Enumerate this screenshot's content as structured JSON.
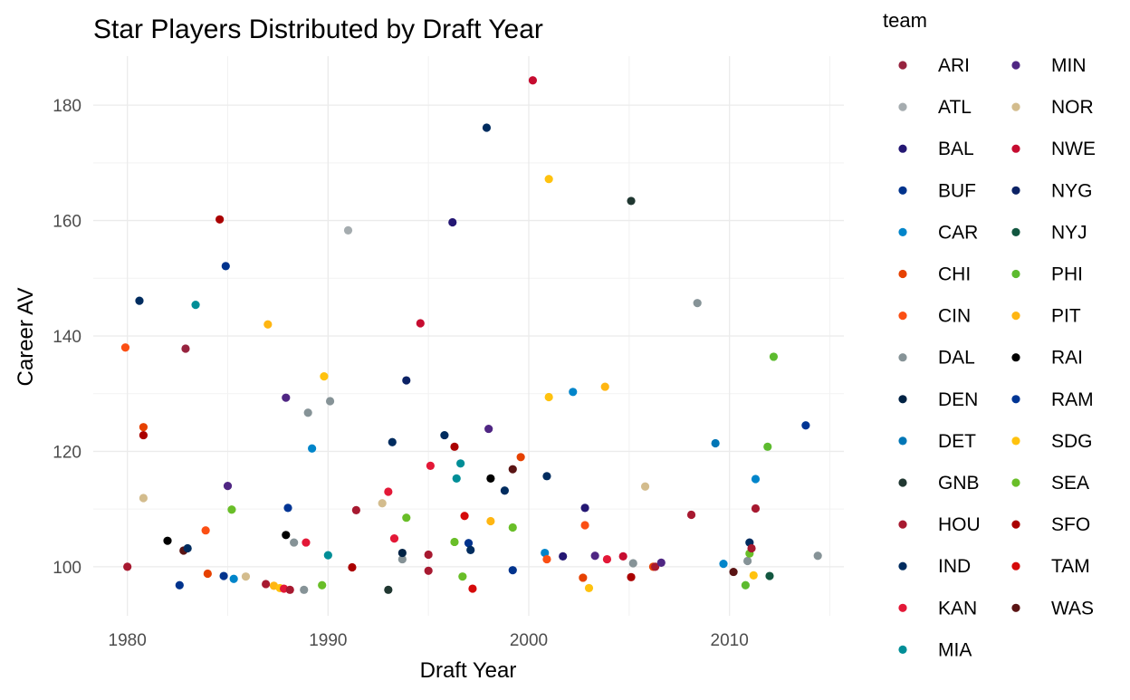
{
  "chart_data": {
    "type": "scatter",
    "title": "Star Players Distributed by Draft Year",
    "xlabel": "Draft Year",
    "ylabel": "Career AV",
    "xlim": [
      1978.3,
      2015.7
    ],
    "ylim": [
      91.5,
      188.5
    ],
    "x_ticks": [
      1980,
      1990,
      2000,
      2010
    ],
    "y_ticks": [
      100,
      120,
      140,
      160,
      180
    ],
    "grid": true,
    "legend_title": "team",
    "legend_position": "right",
    "teams": [
      {
        "name": "ARI",
        "color": "#97233F"
      },
      {
        "name": "ATL",
        "color": "#A5ACAF"
      },
      {
        "name": "BAL",
        "color": "#241773"
      },
      {
        "name": "BUF",
        "color": "#00338D"
      },
      {
        "name": "CAR",
        "color": "#0085CA"
      },
      {
        "name": "CHI",
        "color": "#E64100"
      },
      {
        "name": "CIN",
        "color": "#FB4F14"
      },
      {
        "name": "DAL",
        "color": "#869397"
      },
      {
        "name": "DEN",
        "color": "#002244"
      },
      {
        "name": "DET",
        "color": "#0076B6"
      },
      {
        "name": "GNB",
        "color": "#203731"
      },
      {
        "name": "HOU",
        "color": "#A71930"
      },
      {
        "name": "IND",
        "color": "#002C5F"
      },
      {
        "name": "KAN",
        "color": "#E31837"
      },
      {
        "name": "MIA",
        "color": "#008E97"
      },
      {
        "name": "MIN",
        "color": "#4F2683"
      },
      {
        "name": "NOR",
        "color": "#D3BC8D"
      },
      {
        "name": "NWE",
        "color": "#C60C30"
      },
      {
        "name": "NYG",
        "color": "#0B2265"
      },
      {
        "name": "NYJ",
        "color": "#125740"
      },
      {
        "name": "PHI",
        "color": "#5DBB2F"
      },
      {
        "name": "PIT",
        "color": "#FFB612"
      },
      {
        "name": "RAI",
        "color": "#000000"
      },
      {
        "name": "RAM",
        "color": "#003594"
      },
      {
        "name": "SDG",
        "color": "#FFC20E"
      },
      {
        "name": "SEA",
        "color": "#69BE28"
      },
      {
        "name": "SFO",
        "color": "#AA0000"
      },
      {
        "name": "TAM",
        "color": "#D50A0A"
      },
      {
        "name": "WAS",
        "color": "#5A1414"
      }
    ],
    "points": [
      {
        "x": 1979.9,
        "y": 138,
        "team": "CIN"
      },
      {
        "x": 1980.0,
        "y": 100,
        "team": "HOU"
      },
      {
        "x": 1980.6,
        "y": 146.1,
        "team": "IND"
      },
      {
        "x": 1980.8,
        "y": 124.2,
        "team": "CHI"
      },
      {
        "x": 1980.8,
        "y": 122.8,
        "team": "SFO"
      },
      {
        "x": 1980.8,
        "y": 111.9,
        "team": "NOR"
      },
      {
        "x": 1982.0,
        "y": 104.5,
        "team": "RAI"
      },
      {
        "x": 1982.6,
        "y": 96.8,
        "team": "BUF"
      },
      {
        "x": 1982.8,
        "y": 102.8,
        "team": "WAS"
      },
      {
        "x": 1982.9,
        "y": 137.8,
        "team": "ARI"
      },
      {
        "x": 1983.0,
        "y": 103.2,
        "team": "IND"
      },
      {
        "x": 1983.4,
        "y": 145.4,
        "team": "MIA"
      },
      {
        "x": 1983.9,
        "y": 106.3,
        "team": "CIN"
      },
      {
        "x": 1984.0,
        "y": 98.8,
        "team": "CHI"
      },
      {
        "x": 1984.6,
        "y": 160.2,
        "team": "SFO"
      },
      {
        "x": 1984.8,
        "y": 98.4,
        "team": "BUF"
      },
      {
        "x": 1984.9,
        "y": 152.1,
        "team": "BUF"
      },
      {
        "x": 1985.0,
        "y": 114,
        "team": "MIN"
      },
      {
        "x": 1985.2,
        "y": 109.9,
        "team": "SEA"
      },
      {
        "x": 1985.3,
        "y": 97.9,
        "team": "CAR"
      },
      {
        "x": 1985.9,
        "y": 98.3,
        "team": "NOR"
      },
      {
        "x": 1986.9,
        "y": 97,
        "team": "HOU"
      },
      {
        "x": 1987.0,
        "y": 142,
        "team": "PIT"
      },
      {
        "x": 1987.3,
        "y": 96.7,
        "team": "PIT"
      },
      {
        "x": 1987.6,
        "y": 96.3,
        "team": "SDG"
      },
      {
        "x": 1987.8,
        "y": 96.2,
        "team": "KAN"
      },
      {
        "x": 1987.9,
        "y": 129.3,
        "team": "MIN"
      },
      {
        "x": 1987.9,
        "y": 105.5,
        "team": "RAI"
      },
      {
        "x": 1988.0,
        "y": 110.2,
        "team": "RAM"
      },
      {
        "x": 1988.1,
        "y": 96,
        "team": "HOU"
      },
      {
        "x": 1988.3,
        "y": 104.2,
        "team": "DAL"
      },
      {
        "x": 1988.8,
        "y": 96,
        "team": "DAL"
      },
      {
        "x": 1988.9,
        "y": 104.2,
        "team": "KAN"
      },
      {
        "x": 1989.0,
        "y": 126.7,
        "team": "DAL"
      },
      {
        "x": 1989.2,
        "y": 120.5,
        "team": "CAR"
      },
      {
        "x": 1989.7,
        "y": 96.8,
        "team": "SEA"
      },
      {
        "x": 1989.8,
        "y": 133,
        "team": "SDG"
      },
      {
        "x": 1990.0,
        "y": 102,
        "team": "MIA"
      },
      {
        "x": 1990.1,
        "y": 128.7,
        "team": "DAL"
      },
      {
        "x": 1991.0,
        "y": 158.3,
        "team": "ATL"
      },
      {
        "x": 1991.2,
        "y": 99.9,
        "team": "SFO"
      },
      {
        "x": 1991.4,
        "y": 109.8,
        "team": "HOU"
      },
      {
        "x": 1992.7,
        "y": 111,
        "team": "NOR"
      },
      {
        "x": 1993.0,
        "y": 113,
        "team": "KAN"
      },
      {
        "x": 1993.0,
        "y": 96,
        "team": "GNB"
      },
      {
        "x": 1993.2,
        "y": 121.6,
        "team": "IND"
      },
      {
        "x": 1993.3,
        "y": 104.9,
        "team": "KAN"
      },
      {
        "x": 1993.7,
        "y": 101.3,
        "team": "DAL"
      },
      {
        "x": 1993.7,
        "y": 102.4,
        "team": "DEN"
      },
      {
        "x": 1993.9,
        "y": 108.5,
        "team": "SEA"
      },
      {
        "x": 1993.9,
        "y": 132.3,
        "team": "NYG"
      },
      {
        "x": 1994.6,
        "y": 142.2,
        "team": "NWE"
      },
      {
        "x": 1995.0,
        "y": 99.3,
        "team": "HOU"
      },
      {
        "x": 1995.0,
        "y": 102.1,
        "team": "HOU"
      },
      {
        "x": 1995.1,
        "y": 117.5,
        "team": "KAN"
      },
      {
        "x": 1995.8,
        "y": 122.8,
        "team": "IND"
      },
      {
        "x": 1996.2,
        "y": 159.7,
        "team": "BAL"
      },
      {
        "x": 1996.3,
        "y": 120.8,
        "team": "SFO"
      },
      {
        "x": 1996.3,
        "y": 104.3,
        "team": "SEA"
      },
      {
        "x": 1996.4,
        "y": 115.3,
        "team": "MIA"
      },
      {
        "x": 1996.6,
        "y": 117.9,
        "team": "MIA"
      },
      {
        "x": 1996.7,
        "y": 98.3,
        "team": "SEA"
      },
      {
        "x": 1996.8,
        "y": 108.8,
        "team": "TAM"
      },
      {
        "x": 1997.0,
        "y": 104.1,
        "team": "BUF"
      },
      {
        "x": 1997.1,
        "y": 102.9,
        "team": "IND"
      },
      {
        "x": 1997.2,
        "y": 96.2,
        "team": "TAM"
      },
      {
        "x": 1997.9,
        "y": 176.1,
        "team": "IND"
      },
      {
        "x": 1998.0,
        "y": 123.9,
        "team": "MIN"
      },
      {
        "x": 1998.1,
        "y": 115.3,
        "team": "RAI"
      },
      {
        "x": 1998.1,
        "y": 107.9,
        "team": "PIT"
      },
      {
        "x": 1998.8,
        "y": 113.2,
        "team": "IND"
      },
      {
        "x": 1999.2,
        "y": 116.9,
        "team": "WAS"
      },
      {
        "x": 1999.2,
        "y": 106.8,
        "team": "SEA"
      },
      {
        "x": 1999.2,
        "y": 99.4,
        "team": "BUF"
      },
      {
        "x": 1999.6,
        "y": 119,
        "team": "CHI"
      },
      {
        "x": 2000.2,
        "y": 184.3,
        "team": "NWE"
      },
      {
        "x": 2000.8,
        "y": 102.4,
        "team": "CAR"
      },
      {
        "x": 2000.9,
        "y": 101.3,
        "team": "CIN"
      },
      {
        "x": 2000.9,
        "y": 115.7,
        "team": "IND"
      },
      {
        "x": 2001.0,
        "y": 129.4,
        "team": "SDG"
      },
      {
        "x": 2001.0,
        "y": 167.2,
        "team": "SDG"
      },
      {
        "x": 2001.7,
        "y": 101.8,
        "team": "BAL"
      },
      {
        "x": 2002.2,
        "y": 130.3,
        "team": "CAR"
      },
      {
        "x": 2002.7,
        "y": 98.1,
        "team": "CHI"
      },
      {
        "x": 2002.8,
        "y": 110.2,
        "team": "BAL"
      },
      {
        "x": 2002.8,
        "y": 107.2,
        "team": "CIN"
      },
      {
        "x": 2003.0,
        "y": 96.3,
        "team": "SDG"
      },
      {
        "x": 2003.3,
        "y": 101.9,
        "team": "MIN"
      },
      {
        "x": 2003.8,
        "y": 131.2,
        "team": "PIT"
      },
      {
        "x": 2003.9,
        "y": 101.3,
        "team": "KAN"
      },
      {
        "x": 2004.7,
        "y": 101.8,
        "team": "NWE"
      },
      {
        "x": 2005.1,
        "y": 163.4,
        "team": "GNB"
      },
      {
        "x": 2005.1,
        "y": 98.2,
        "team": "SFO"
      },
      {
        "x": 2005.2,
        "y": 100.6,
        "team": "DAL"
      },
      {
        "x": 2005.8,
        "y": 113.9,
        "team": "NOR"
      },
      {
        "x": 2006.2,
        "y": 100,
        "team": "CHI"
      },
      {
        "x": 2006.3,
        "y": 100,
        "team": "HOU"
      },
      {
        "x": 2006.6,
        "y": 100.7,
        "team": "MIN"
      },
      {
        "x": 2008.1,
        "y": 109,
        "team": "HOU"
      },
      {
        "x": 2008.4,
        "y": 145.7,
        "team": "DAL"
      },
      {
        "x": 2009.3,
        "y": 121.4,
        "team": "DET"
      },
      {
        "x": 2009.7,
        "y": 100.5,
        "team": "CAR"
      },
      {
        "x": 2010.2,
        "y": 99.1,
        "team": "WAS"
      },
      {
        "x": 2010.8,
        "y": 96.8,
        "team": "PHI"
      },
      {
        "x": 2010.9,
        "y": 101,
        "team": "DAL"
      },
      {
        "x": 2011.0,
        "y": 104.2,
        "team": "IND"
      },
      {
        "x": 2011.0,
        "y": 102.3,
        "team": "SEA"
      },
      {
        "x": 2011.1,
        "y": 103.2,
        "team": "HOU"
      },
      {
        "x": 2011.2,
        "y": 98.5,
        "team": "SDG"
      },
      {
        "x": 2011.3,
        "y": 110.1,
        "team": "HOU"
      },
      {
        "x": 2011.3,
        "y": 115.2,
        "team": "CAR"
      },
      {
        "x": 2011.9,
        "y": 120.8,
        "team": "PHI"
      },
      {
        "x": 2012.0,
        "y": 98.4,
        "team": "NYJ"
      },
      {
        "x": 2012.2,
        "y": 136.4,
        "team": "PHI"
      },
      {
        "x": 2013.8,
        "y": 124.5,
        "team": "RAM"
      },
      {
        "x": 2014.4,
        "y": 101.9,
        "team": "DAL"
      }
    ]
  }
}
